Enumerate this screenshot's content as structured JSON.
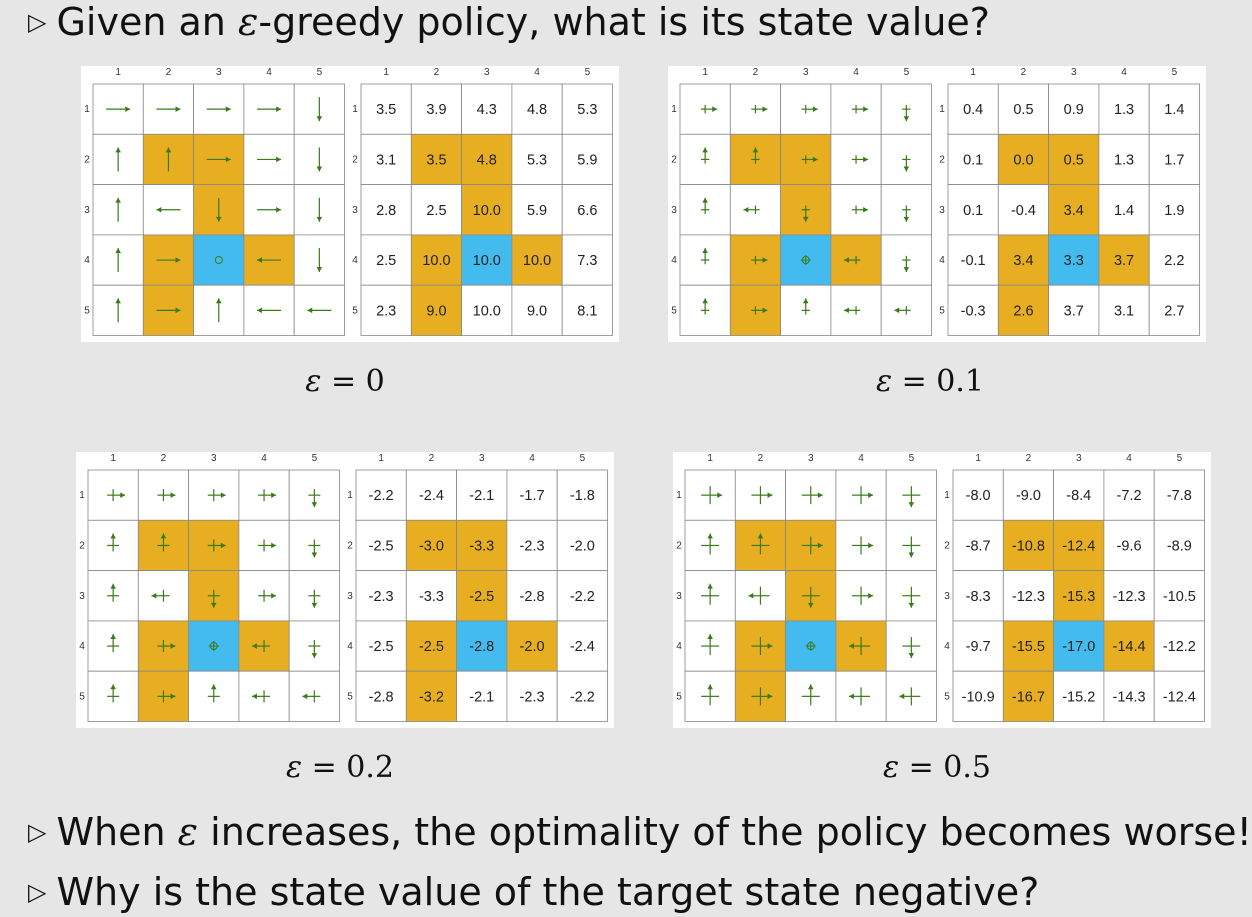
{
  "bullets": {
    "b1_pre": "Given an ",
    "b1_eps": "ε",
    "b1_post": "-greedy policy, what is its state value?",
    "b2_pre": "When ",
    "b2_eps": "ε",
    "b2_post": " increases, the optimality of the policy becomes worse!",
    "b3": "Why is the state value of the target state negative?"
  },
  "bullet_marker": "▷",
  "col_labels": [
    "1",
    "2",
    "3",
    "4",
    "5"
  ],
  "row_labels": [
    "1",
    "2",
    "3",
    "4",
    "5"
  ],
  "colors": {
    "forbidden": "#e8ae22",
    "target": "#44bbee",
    "arrow": "#3a7a1a",
    "grid": "#888888",
    "background": "#e6e6e6"
  },
  "cell_types": [
    [
      "n",
      "n",
      "n",
      "n",
      "n"
    ],
    [
      "n",
      "f",
      "f",
      "n",
      "n"
    ],
    [
      "n",
      "n",
      "f",
      "n",
      "n"
    ],
    [
      "n",
      "f",
      "t",
      "f",
      "n"
    ],
    [
      "n",
      "f",
      "n",
      "n",
      "n"
    ]
  ],
  "panels": [
    {
      "caption_eps": "ε",
      "caption_rest": " = 0",
      "policy_style": "deterministic",
      "policy": [
        [
          "right",
          "right",
          "right",
          "right",
          "down"
        ],
        [
          "up",
          "up",
          "right",
          "right",
          "down"
        ],
        [
          "up",
          "left",
          "down",
          "right",
          "down"
        ],
        [
          "up",
          "right",
          "stay",
          "left",
          "down"
        ],
        [
          "up",
          "right",
          "up",
          "left",
          "left"
        ]
      ],
      "values": [
        [
          "3.5",
          "3.9",
          "4.3",
          "4.8",
          "5.3"
        ],
        [
          "3.1",
          "3.5",
          "4.8",
          "5.3",
          "5.9"
        ],
        [
          "2.8",
          "2.5",
          "10.0",
          "5.9",
          "6.6"
        ],
        [
          "2.5",
          "10.0",
          "10.0",
          "10.0",
          "7.3"
        ],
        [
          "2.3",
          "9.0",
          "10.0",
          "9.0",
          "8.1"
        ]
      ]
    },
    {
      "caption_eps": "ε",
      "caption_rest": " = 0.1",
      "policy_style": "eps",
      "policy": [
        [
          "right",
          "right",
          "right",
          "right",
          "down"
        ],
        [
          "up",
          "up",
          "right",
          "right",
          "down"
        ],
        [
          "up",
          "left",
          "down",
          "right",
          "down"
        ],
        [
          "up",
          "right",
          "stay",
          "left",
          "down"
        ],
        [
          "up",
          "right",
          "up",
          "left",
          "left"
        ]
      ],
      "values": [
        [
          "0.4",
          "0.5",
          "0.9",
          "1.3",
          "1.4"
        ],
        [
          "0.1",
          "0.0",
          "0.5",
          "1.3",
          "1.7"
        ],
        [
          "0.1",
          "-0.4",
          "3.4",
          "1.4",
          "1.9"
        ],
        [
          "-0.1",
          "3.4",
          "3.3",
          "3.7",
          "2.2"
        ],
        [
          "-0.3",
          "2.6",
          "3.7",
          "3.1",
          "2.7"
        ]
      ]
    },
    {
      "caption_eps": "ε",
      "caption_rest": " = 0.2",
      "policy_style": "eps",
      "policy": [
        [
          "right",
          "right",
          "right",
          "right",
          "down"
        ],
        [
          "up",
          "up",
          "right",
          "right",
          "down"
        ],
        [
          "up",
          "left",
          "down",
          "right",
          "down"
        ],
        [
          "up",
          "right",
          "stay",
          "left",
          "down"
        ],
        [
          "up",
          "right",
          "up",
          "left",
          "left"
        ]
      ],
      "values": [
        [
          "-2.2",
          "-2.4",
          "-2.1",
          "-1.7",
          "-1.8"
        ],
        [
          "-2.5",
          "-3.0",
          "-3.3",
          "-2.3",
          "-2.0"
        ],
        [
          "-2.3",
          "-3.3",
          "-2.5",
          "-2.8",
          "-2.2"
        ],
        [
          "-2.5",
          "-2.5",
          "-2.8",
          "-2.0",
          "-2.4"
        ],
        [
          "-2.8",
          "-3.2",
          "-2.1",
          "-2.3",
          "-2.2"
        ]
      ]
    },
    {
      "caption_eps": "ε",
      "caption_rest": " = 0.5",
      "policy_style": "eps",
      "policy": [
        [
          "right",
          "right",
          "right",
          "right",
          "down"
        ],
        [
          "up",
          "up",
          "right",
          "right",
          "down"
        ],
        [
          "up",
          "left",
          "down",
          "right",
          "down"
        ],
        [
          "up",
          "right",
          "stay",
          "left",
          "down"
        ],
        [
          "up",
          "right",
          "up",
          "left",
          "left"
        ]
      ],
      "values": [
        [
          "-8.0",
          "-9.0",
          "-8.4",
          "-7.2",
          "-7.8"
        ],
        [
          "-8.7",
          "-10.8",
          "-12.4",
          "-9.6",
          "-8.9"
        ],
        [
          "-8.3",
          "-12.3",
          "-15.3",
          "-12.3",
          "-10.5"
        ],
        [
          "-9.7",
          "-15.5",
          "-17.0",
          "-14.4",
          "-12.2"
        ],
        [
          "-10.9",
          "-16.7",
          "-15.2",
          "-14.3",
          "-12.4"
        ]
      ]
    }
  ]
}
